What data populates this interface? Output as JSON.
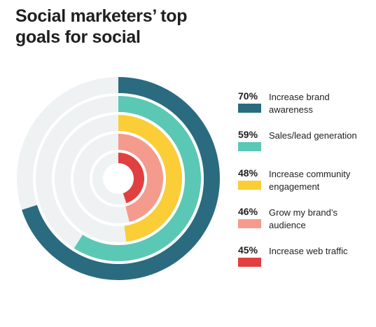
{
  "title": "Social marketers’ top goals for social",
  "colors": {
    "track": "#eef2f3",
    "background": "#ffffff"
  },
  "chart_data": {
    "type": "radial-bar",
    "unit": "%",
    "max": 100,
    "series": [
      {
        "value": 70,
        "pct_label": "70%",
        "label": "Increase brand awareness",
        "color": "#2b6b80"
      },
      {
        "value": 59,
        "pct_label": "59%",
        "label": "Sales/lead generation",
        "color": "#5bc8b5"
      },
      {
        "value": 48,
        "pct_label": "48%",
        "label": "Increase community engagement",
        "color": "#fbcd37"
      },
      {
        "value": 46,
        "pct_label": "46%",
        "label": "Grow my brand’s audience",
        "color": "#f49b8e"
      },
      {
        "value": 45,
        "pct_label": "45%",
        "label": "Increase web traffic",
        "color": "#e0403f"
      }
    ]
  }
}
